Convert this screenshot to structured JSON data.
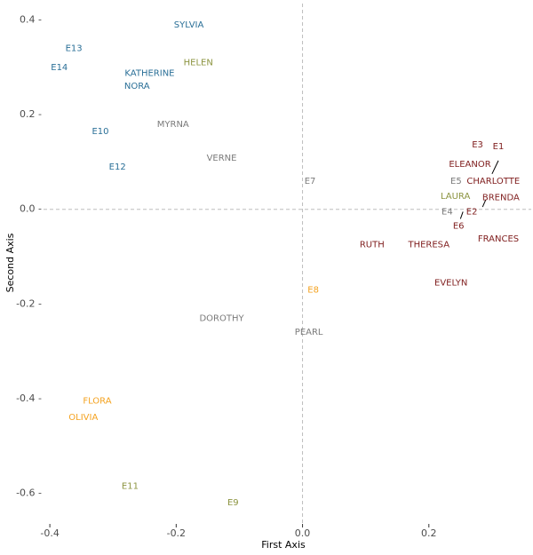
{
  "chart_data": {
    "type": "scatter",
    "xlabel": "First Axis",
    "ylabel": "Second Axis",
    "xlim": [
      -0.41,
      0.355
    ],
    "ylim": [
      -0.665,
      0.42
    ],
    "x_ticks": [
      -0.4,
      -0.2,
      0.0,
      0.2
    ],
    "x_tick_labels": [
      "-0.4",
      "-0.2",
      "0.0",
      "0.2"
    ],
    "y_ticks": [
      0.4,
      0.2,
      0.0,
      -0.2,
      -0.4,
      -0.6
    ],
    "y_tick_labels": [
      "0.4 -",
      "0.2 -",
      "0.0 -",
      "-0.2 -",
      "-0.4 -",
      "-0.6 -"
    ],
    "reference_lines": {
      "x": 0,
      "y": 0,
      "style": "dashed"
    },
    "grid": false,
    "legend": "none",
    "colors": {
      "blue": "#2a6f97",
      "olive": "#8c9440",
      "gray": "#7a7a7a",
      "red": "#7f1d1d",
      "orange": "#f4a21f"
    },
    "points": [
      {
        "label": "SYLVIA",
        "x": -0.18,
        "y": 0.39,
        "group": "blue"
      },
      {
        "label": "E13",
        "x": -0.362,
        "y": 0.34,
        "group": "blue"
      },
      {
        "label": "HELEN",
        "x": -0.165,
        "y": 0.31,
        "group": "olive"
      },
      {
        "label": "E14",
        "x": -0.385,
        "y": 0.3,
        "group": "blue"
      },
      {
        "label": "KATHERINE",
        "x": -0.242,
        "y": 0.288,
        "group": "blue"
      },
      {
        "label": "NORA",
        "x": -0.262,
        "y": 0.26,
        "group": "blue"
      },
      {
        "label": "MYRNA",
        "x": -0.205,
        "y": 0.18,
        "group": "gray"
      },
      {
        "label": "E10",
        "x": -0.32,
        "y": 0.165,
        "group": "blue"
      },
      {
        "label": "VERNE",
        "x": -0.128,
        "y": 0.108,
        "group": "gray"
      },
      {
        "label": "E12",
        "x": -0.293,
        "y": 0.09,
        "group": "blue"
      },
      {
        "label": "E3",
        "x": 0.277,
        "y": 0.137,
        "group": "red"
      },
      {
        "label": "E1",
        "x": 0.31,
        "y": 0.133,
        "group": "red"
      },
      {
        "label": "ELEANOR",
        "x": 0.265,
        "y": 0.095,
        "group": "red"
      },
      {
        "label": "E7",
        "x": 0.012,
        "y": 0.06,
        "group": "gray"
      },
      {
        "label": "E5",
        "x": 0.243,
        "y": 0.06,
        "group": "gray"
      },
      {
        "label": "CHARLOTTE",
        "x": 0.302,
        "y": 0.06,
        "group": "red"
      },
      {
        "label": "LAURA",
        "x": 0.242,
        "y": 0.028,
        "group": "olive"
      },
      {
        "label": "BRENDA",
        "x": 0.314,
        "y": 0.025,
        "group": "red"
      },
      {
        "label": "E4",
        "x": 0.229,
        "y": -0.005,
        "group": "gray"
      },
      {
        "label": "E2",
        "x": 0.268,
        "y": -0.005,
        "group": "red"
      },
      {
        "label": "E6",
        "x": 0.247,
        "y": -0.035,
        "group": "red"
      },
      {
        "label": "FRANCES",
        "x": 0.31,
        "y": -0.062,
        "group": "red"
      },
      {
        "label": "RUTH",
        "x": 0.11,
        "y": -0.075,
        "group": "red"
      },
      {
        "label": "THERESA",
        "x": 0.2,
        "y": -0.075,
        "group": "red"
      },
      {
        "label": "EVELYN",
        "x": 0.235,
        "y": -0.155,
        "group": "red"
      },
      {
        "label": "E8",
        "x": 0.017,
        "y": -0.17,
        "group": "orange"
      },
      {
        "label": "DOROTHY",
        "x": -0.128,
        "y": -0.23,
        "group": "gray"
      },
      {
        "label": "PEARL",
        "x": 0.01,
        "y": -0.26,
        "group": "gray"
      },
      {
        "label": "FLORA",
        "x": -0.325,
        "y": -0.405,
        "group": "orange"
      },
      {
        "label": "OLIVIA",
        "x": -0.347,
        "y": -0.44,
        "group": "orange"
      },
      {
        "label": "E11",
        "x": -0.273,
        "y": -0.585,
        "group": "olive"
      },
      {
        "label": "E9",
        "x": -0.11,
        "y": -0.62,
        "group": "olive"
      }
    ],
    "leader_lines": [
      {
        "from": {
          "x": 0.3,
          "y": 0.075
        },
        "to": {
          "x": 0.31,
          "y": 0.103
        }
      },
      {
        "from": {
          "x": 0.285,
          "y": 0.005
        },
        "to": {
          "x": 0.29,
          "y": 0.02
        }
      },
      {
        "from": {
          "x": 0.25,
          "y": -0.02
        },
        "to": {
          "x": 0.254,
          "y": -0.005
        }
      }
    ]
  }
}
